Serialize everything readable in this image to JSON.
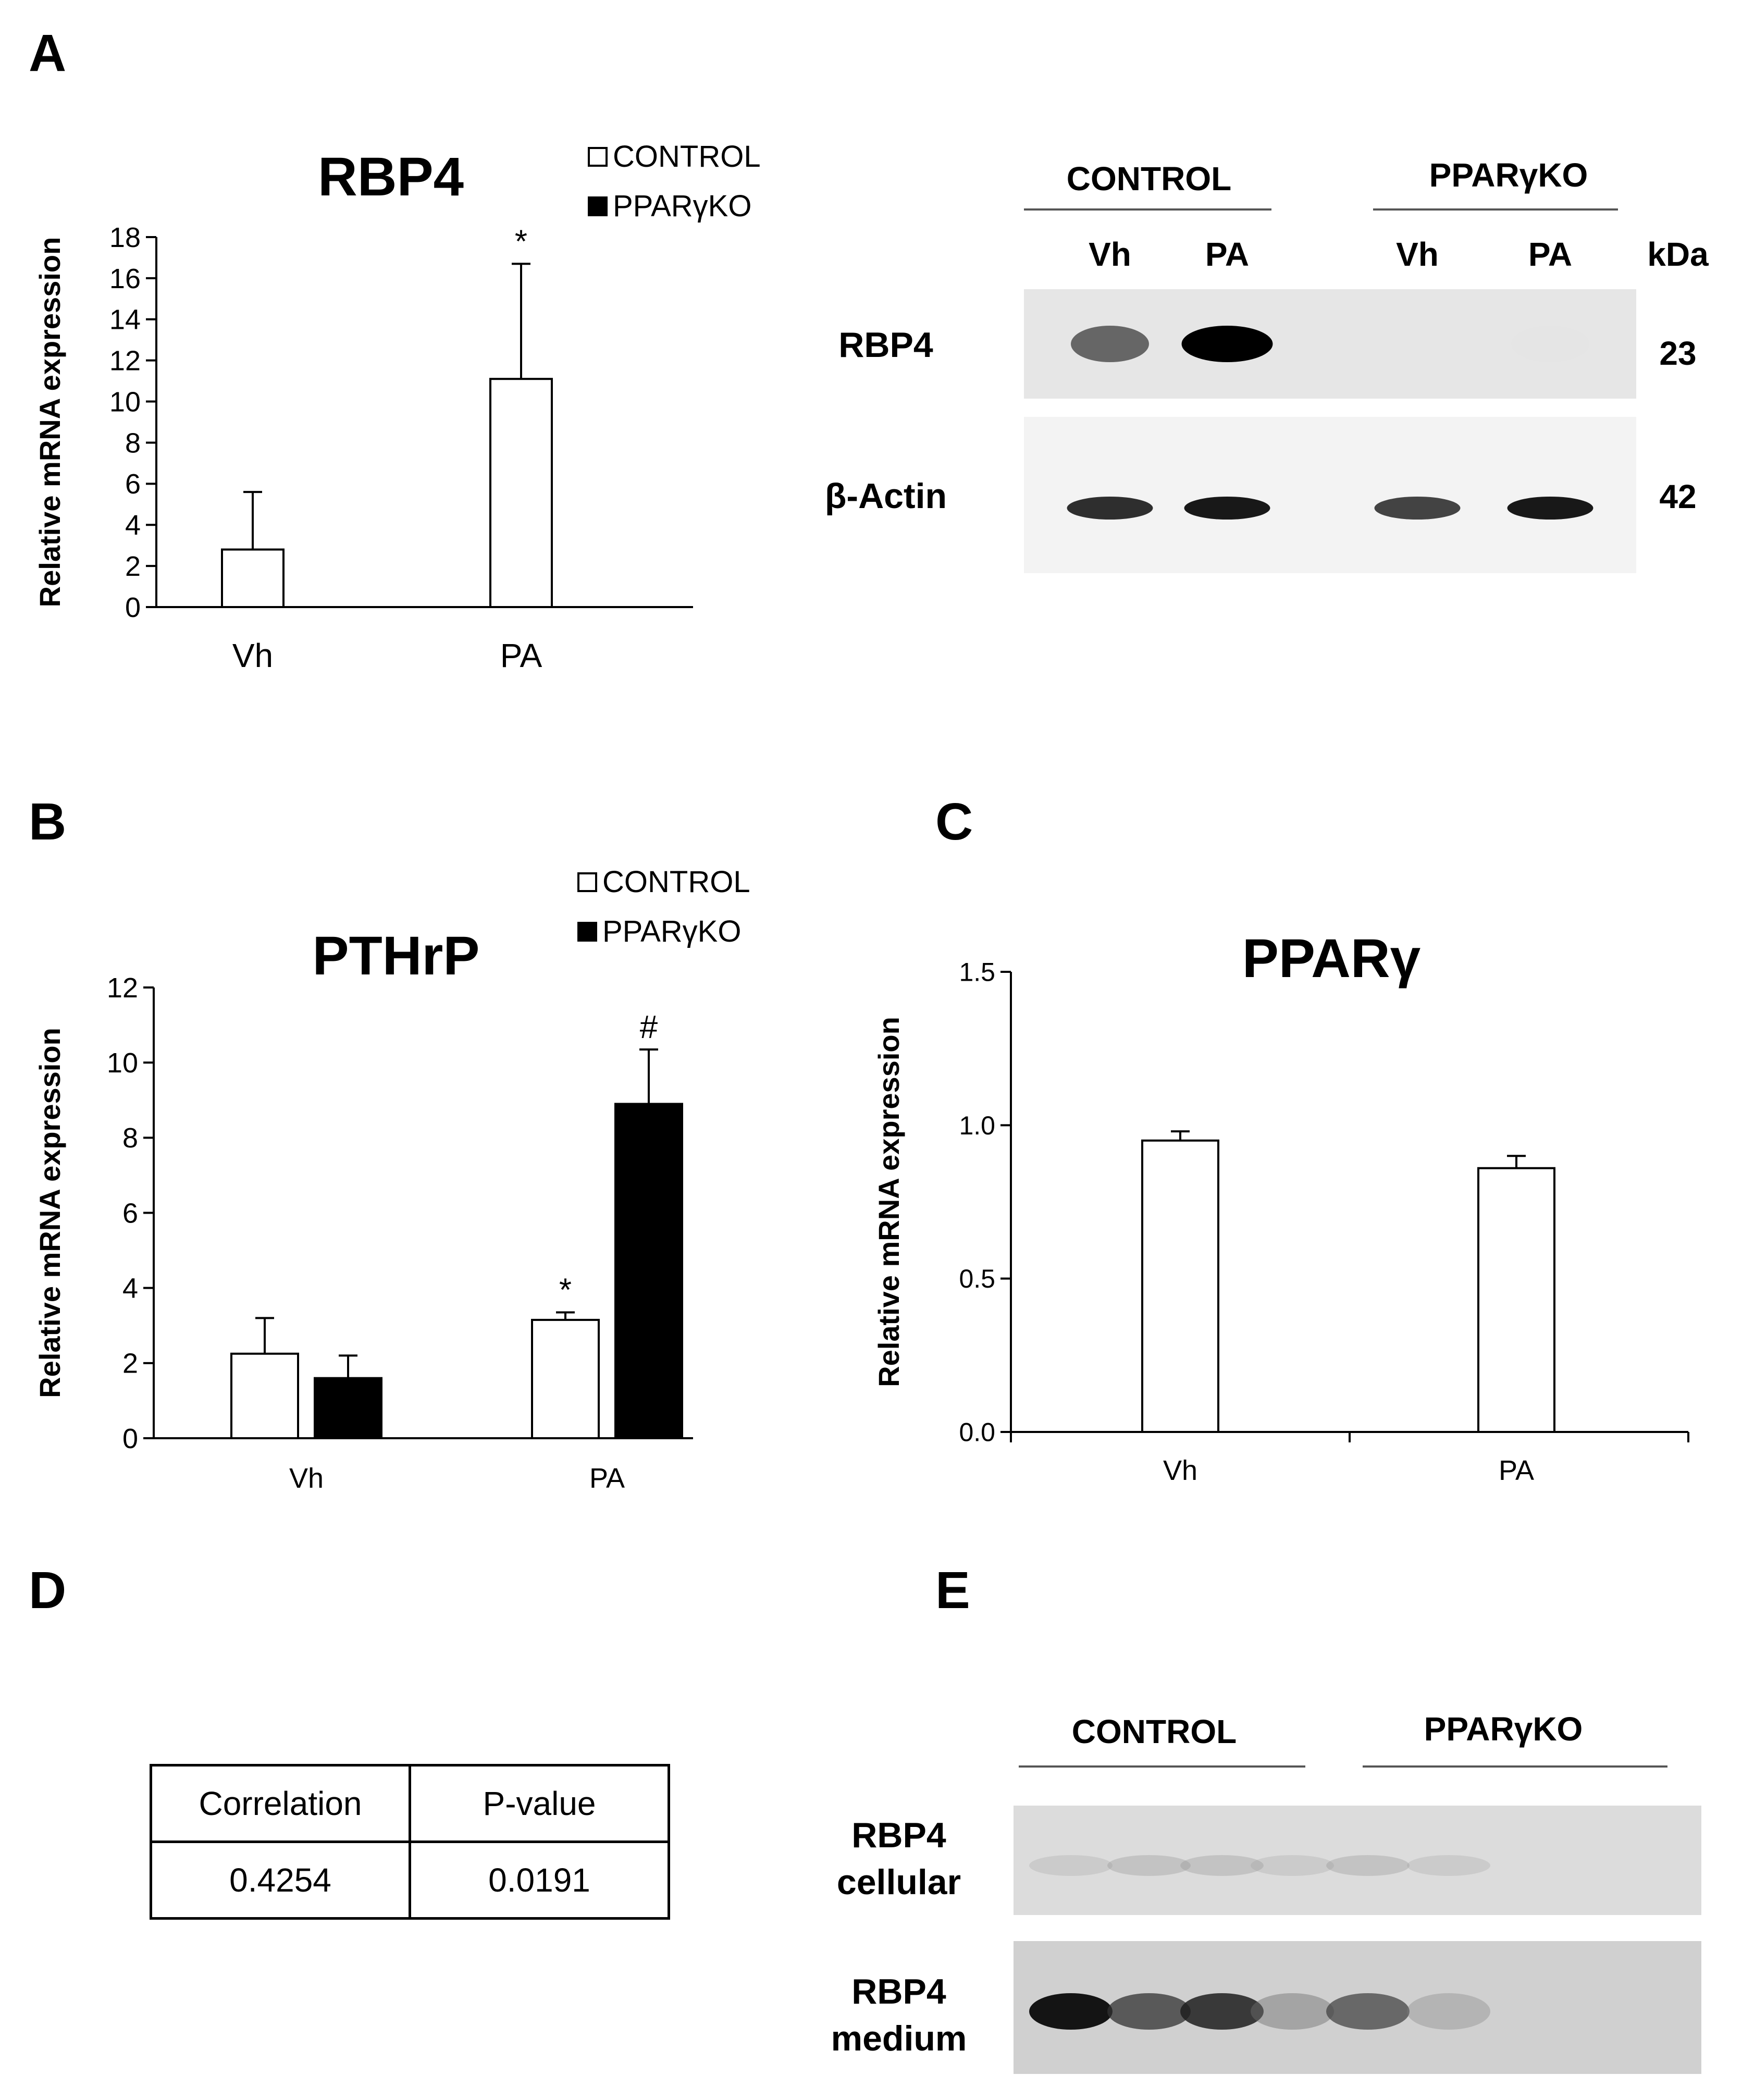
{
  "panels": {
    "A": "A",
    "B": "B",
    "C": "C",
    "D": "D",
    "E": "E"
  },
  "chart_data": [
    {
      "panel": "A",
      "type": "bar",
      "title": "RBP4",
      "ylabel": "Relative mRNA expression",
      "categories": [
        "Vh",
        "PA"
      ],
      "ylim": [
        0,
        18
      ],
      "yticks": [
        "0",
        "2",
        "4",
        "6",
        "8",
        "10",
        "12",
        "14",
        "16",
        "18"
      ],
      "legend": [
        "CONTROL",
        "PPARγKO"
      ],
      "legend_position": "top-right",
      "series": [
        {
          "name": "CONTROL",
          "color": "#ffffff",
          "values": [
            2.8,
            11.1
          ],
          "errors": [
            2.8,
            5.6
          ],
          "annotations": [
            "",
            "*"
          ]
        }
      ]
    },
    {
      "panel": "B",
      "type": "bar",
      "title": "PTHrP",
      "ylabel": "Relative mRNA  expression",
      "categories": [
        "Vh",
        "PA"
      ],
      "ylim": [
        0,
        12
      ],
      "yticks": [
        "0",
        "2",
        "4",
        "6",
        "8",
        "10",
        "12"
      ],
      "legend": [
        "CONTROL",
        "PPARγKO"
      ],
      "legend_position": "top-right",
      "series": [
        {
          "name": "CONTROL",
          "color": "#ffffff",
          "values": [
            2.25,
            3.15
          ],
          "errors": [
            0.95,
            0.2
          ],
          "annotations": [
            "",
            "*"
          ]
        },
        {
          "name": "PPARγKO",
          "color": "#000000",
          "values": [
            1.6,
            8.9
          ],
          "errors": [
            0.6,
            1.45
          ],
          "annotations": [
            "",
            "#"
          ]
        }
      ]
    },
    {
      "panel": "C",
      "type": "bar",
      "title": "PPARγ",
      "ylabel": "Relative mRNA expression",
      "categories": [
        "Vh",
        "PA"
      ],
      "ylim": [
        0,
        1.5
      ],
      "yticks": [
        "0.0",
        "0.5",
        "1.0",
        "1.5"
      ],
      "series": [
        {
          "name": "",
          "color": "#ffffff",
          "values": [
            0.95,
            0.86
          ],
          "errors": [
            0.03,
            0.04
          ],
          "annotations": [
            "",
            ""
          ]
        }
      ]
    }
  ],
  "blot_A": {
    "groups": [
      "CONTROL",
      "PPARγKO"
    ],
    "lanes": [
      "Vh",
      "PA",
      "Vh",
      "PA"
    ],
    "kda_label": "kDa",
    "rows": [
      {
        "label": "RBP4",
        "kda": "23",
        "intensity": [
          0.75,
          1.0,
          0.04,
          0.06
        ]
      },
      {
        "label": "β-Actin",
        "kda": "42",
        "intensity": [
          0.9,
          0.95,
          0.85,
          0.95
        ]
      }
    ]
  },
  "table_D": {
    "headers": [
      "Correlation",
      "P-value"
    ],
    "values": [
      "0.4254",
      "0.0191"
    ]
  },
  "blot_E": {
    "groups": [
      "CONTROL",
      "PPARγKO"
    ],
    "rows": [
      {
        "label_line1": "RBP4",
        "label_line2": "cellular",
        "intensity": [
          0.25,
          0.3,
          0.3,
          0.25,
          0.3,
          0.25
        ]
      },
      {
        "label_line1": "RBP4",
        "label_line2": "medium",
        "intensity": [
          0.95,
          0.75,
          0.85,
          0.45,
          0.7,
          0.35
        ]
      }
    ]
  }
}
